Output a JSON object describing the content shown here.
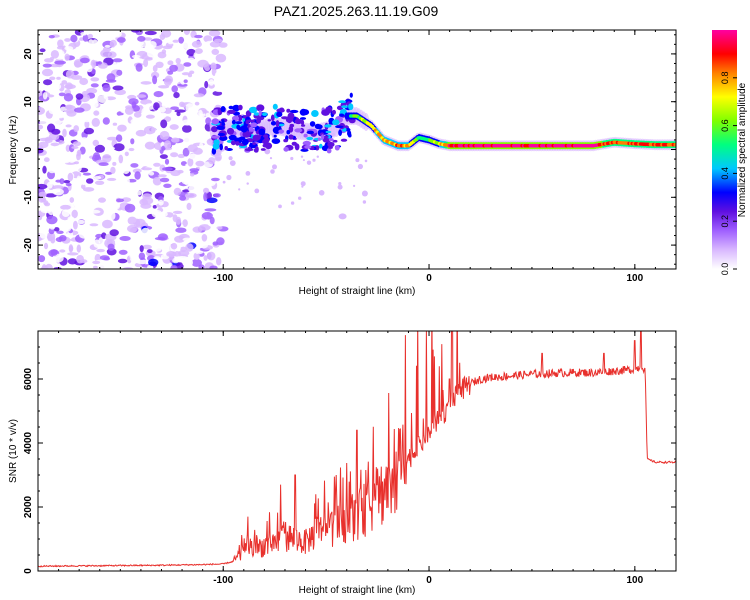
{
  "title": "PAZ1.2025.263.11.19.G09",
  "chart_data": [
    {
      "type": "heatmap",
      "panel": "spectrogram",
      "title": "PAZ1.2025.263.11.19.G09",
      "xlabel": "Height of straight line (km)",
      "ylabel": "Frequency (Hz)",
      "xlim": [
        -190,
        120
      ],
      "ylim": [
        -25,
        25
      ],
      "xticks": [
        -100,
        0,
        100
      ],
      "xtick_labels": [
        "-100",
        "0",
        "100"
      ],
      "yticks": [
        20,
        10,
        0,
        -10,
        -20
      ],
      "ytick_labels": [
        "20",
        "10",
        "0",
        "-10",
        "-20"
      ],
      "colorbar": {
        "label": "Normalized spectral amplitude",
        "range": [
          0.0,
          1.0
        ],
        "ticks": [
          0.0,
          0.2,
          0.4,
          0.6,
          0.8
        ],
        "tick_labels": [
          "0.0",
          "0.2",
          "0.4",
          "0.6",
          "0.8"
        ],
        "colors": [
          "#ffffff",
          "#d9b8ff",
          "#a060ff",
          "#6010e0",
          "#0000ff",
          "#00c8ff",
          "#00ff80",
          "#80ff00",
          "#ffff00",
          "#ff8000",
          "#ff0000",
          "#ff00a0"
        ]
      },
      "ridge": {
        "height_km": [
          -105,
          -95,
          -85,
          -75,
          -65,
          -55,
          -45,
          -40,
          -35,
          -28,
          -22,
          -15,
          -10,
          -5,
          0,
          5,
          10,
          20,
          30,
          40,
          50,
          60,
          70,
          80,
          90,
          100,
          110,
          120
        ],
        "frequency_hz": [
          4,
          4.5,
          4,
          5,
          4,
          3.5,
          4.5,
          7,
          7,
          5,
          2,
          0.8,
          0.8,
          2.5,
          2,
          1.2,
          0.8,
          0.8,
          0.8,
          0.8,
          0.8,
          0.8,
          0.8,
          0.8,
          1.5,
          1.2,
          1,
          1
        ],
        "amplitude": [
          0.25,
          0.3,
          0.3,
          0.35,
          0.3,
          0.3,
          0.35,
          0.5,
          0.6,
          0.7,
          0.75,
          0.8,
          0.75,
          0.55,
          0.6,
          0.7,
          0.9,
          0.95,
          0.95,
          0.95,
          0.95,
          0.95,
          0.95,
          0.95,
          0.8,
          0.85,
          0.85,
          0.85
        ]
      },
      "noise_region_km": [
        -190,
        -100
      ]
    },
    {
      "type": "line",
      "panel": "snr",
      "xlabel": "Height of straight line (km)",
      "ylabel": "SNR (10 * v/v)",
      "xlim": [
        -190,
        120
      ],
      "ylim": [
        0,
        7500
      ],
      "xticks": [
        -100,
        0,
        100
      ],
      "xtick_labels": [
        "-100",
        "0",
        "100"
      ],
      "yticks": [
        0,
        2000,
        4000,
        6000
      ],
      "ytick_labels": [
        "0",
        "2000",
        "4000",
        "6000"
      ],
      "series": [
        {
          "name": "SNR",
          "color": "#e8302c",
          "x": [
            -190,
            -170,
            -150,
            -130,
            -110,
            -100,
            -95,
            -90,
            -85,
            -80,
            -75,
            -70,
            -65,
            -60,
            -55,
            -50,
            -45,
            -40,
            -35,
            -30,
            -25,
            -20,
            -15,
            -10,
            -5,
            0,
            5,
            10,
            15,
            20,
            25,
            30,
            40,
            50,
            60,
            70,
            80,
            90,
            100,
            103,
            105,
            106,
            108,
            110,
            115,
            120
          ],
          "y": [
            150,
            160,
            170,
            180,
            200,
            220,
            300,
            600,
            700,
            800,
            900,
            1100,
            1000,
            900,
            1200,
            1300,
            1400,
            1600,
            1700,
            2000,
            2300,
            2700,
            3100,
            3500,
            3900,
            4300,
            4700,
            5200,
            5600,
            5850,
            6000,
            6050,
            6100,
            6150,
            6180,
            6200,
            6200,
            6250,
            6300,
            6400,
            6300,
            3500,
            3450,
            3400,
            3400,
            3400
          ],
          "spikes": [
            {
              "x": -88,
              "y": 1700
            },
            {
              "x": -72,
              "y": 2700
            },
            {
              "x": -65,
              "y": 3000
            },
            {
              "x": -55,
              "y": 2400
            },
            {
              "x": -45,
              "y": 3000
            },
            {
              "x": -35,
              "y": 4400
            },
            {
              "x": -25,
              "y": 3200
            },
            {
              "x": -15,
              "y": 3500
            },
            {
              "x": -5,
              "y": 4200
            },
            {
              "x": 5,
              "y": 6400
            },
            {
              "x": 10,
              "y": 6000
            },
            {
              "x": 55,
              "y": 6800
            },
            {
              "x": 85,
              "y": 6800
            },
            {
              "x": 100,
              "y": 7200
            },
            {
              "x": 103,
              "y": 7600
            }
          ]
        }
      ]
    }
  ]
}
